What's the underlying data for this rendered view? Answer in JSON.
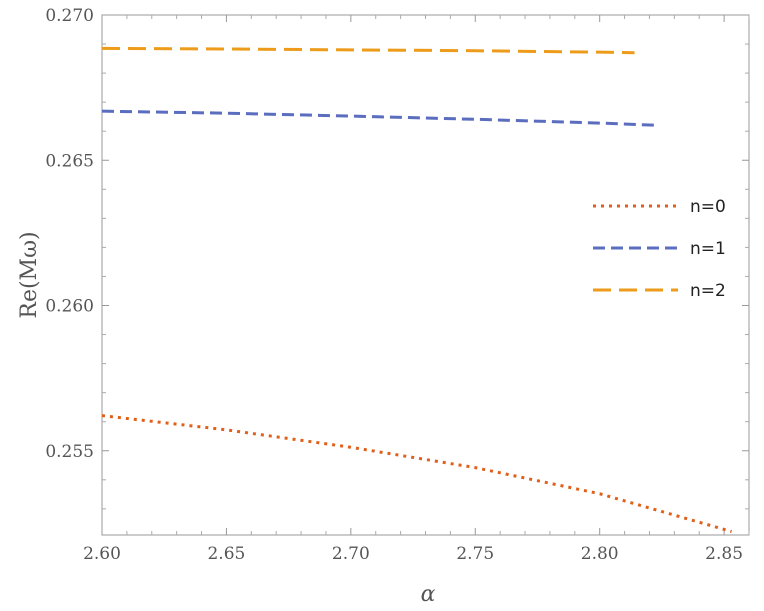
{
  "chart_data": {
    "type": "line",
    "xlabel": "α",
    "ylabel": "Re(Mω)",
    "xlim": [
      2.6,
      2.86
    ],
    "ylim": [
      0.2521,
      0.27
    ],
    "xticks": [
      "2.60",
      "2.65",
      "2.70",
      "2.75",
      "2.80",
      "2.85"
    ],
    "yticks": [
      "0.255",
      "0.260",
      "0.265",
      "0.270"
    ],
    "legend_position": "right",
    "series": [
      {
        "name": "n=0",
        "color": "#E0601A",
        "dash": "dotted",
        "x": [
          2.6,
          2.65,
          2.7,
          2.75,
          2.8,
          2.853
        ],
        "y": [
          0.25621,
          0.25572,
          0.25512,
          0.25442,
          0.25352,
          0.25222
        ]
      },
      {
        "name": "n=1",
        "color": "#5B6DBE",
        "dash": "dashed",
        "x": [
          2.6,
          2.65,
          2.7,
          2.75,
          2.8,
          2.824
        ],
        "y": [
          0.26669,
          0.26662,
          0.26652,
          0.26641,
          0.26628,
          0.2662
        ]
      },
      {
        "name": "n=2",
        "color": "#EC9C1A",
        "dash": "long-dashed",
        "x": [
          2.6,
          2.65,
          2.7,
          2.75,
          2.8,
          2.814
        ],
        "y": [
          0.26885,
          0.26883,
          0.2688,
          0.26877,
          0.26872,
          0.2687
        ]
      }
    ]
  }
}
